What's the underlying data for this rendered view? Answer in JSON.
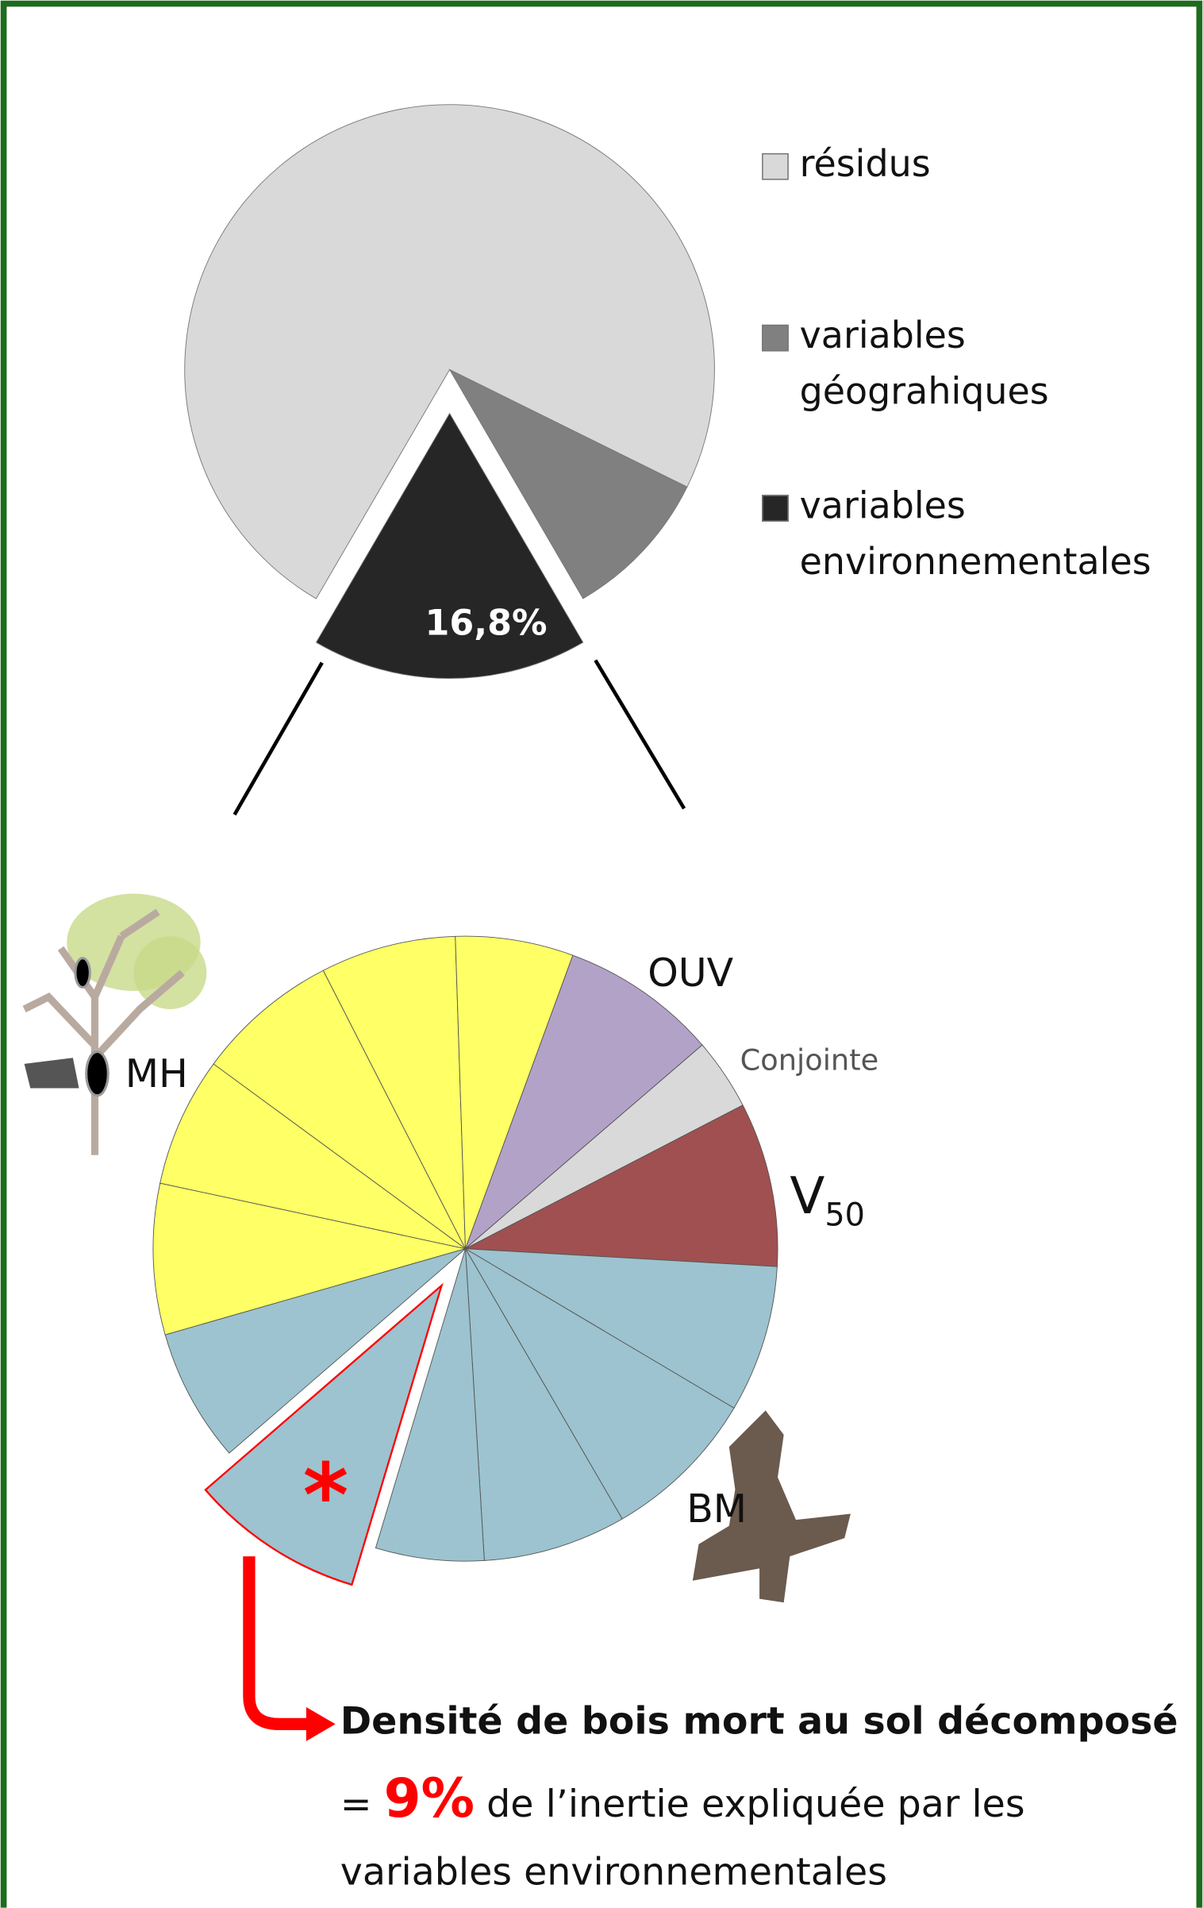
{
  "chart_data": [
    {
      "type": "pie",
      "categories": [
        "résidus",
        "variables géograhiques",
        "variables environnementales"
      ],
      "values": [
        73.9,
        9.3,
        16.8
      ],
      "value_labels": [
        null,
        null,
        "16,8%"
      ],
      "colors": [
        "#d9d9d9",
        "#808080",
        "#262626"
      ],
      "exploded": [
        false,
        false,
        true
      ],
      "legend": "right"
    },
    {
      "type": "pie",
      "series": [
        {
          "name": "MH",
          "color": "#ffff66",
          "values": [
            7.8,
            6.7,
            7.4,
            7.0,
            6.1
          ]
        },
        {
          "name": "OUV",
          "color": "#b3a2c8",
          "values": [
            8.1
          ]
        },
        {
          "name": "Conjointe",
          "color": "#d9d9d9",
          "values": [
            3.7
          ]
        },
        {
          "name": "V",
          "subscript": "50",
          "color": "#a05050",
          "values": [
            8.5
          ]
        },
        {
          "name": "BM",
          "color": "#9cc3cf",
          "values": [
            7.6,
            8.1,
            7.4,
            5.6,
            9,
            6.9
          ],
          "value_labels": [
            null,
            null,
            null,
            null,
            "9%",
            null
          ],
          "exploded": [
            false,
            false,
            false,
            false,
            true,
            false
          ]
        }
      ],
      "annotation": {
        "marker": "*",
        "title": "Densité de bois mort au sol décomposé",
        "prefix": "=",
        "suffix": "de l’inertie expliquée par les variables environnementales"
      }
    }
  ]
}
